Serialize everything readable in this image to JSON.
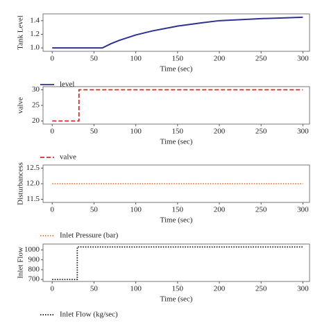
{
  "chart_data": [
    {
      "type": "line",
      "ylabel": "Tank Level",
      "xlabel": "Time (sec)",
      "x": [
        0,
        60,
        70,
        80,
        100,
        120,
        150,
        180,
        200,
        250,
        300
      ],
      "series": [
        {
          "name": "level",
          "color": "#2e3192",
          "dash": "solid",
          "values": [
            1.0,
            1.0,
            1.06,
            1.11,
            1.19,
            1.25,
            1.32,
            1.37,
            1.4,
            1.43,
            1.45
          ]
        }
      ],
      "xlim": [
        -11,
        308
      ],
      "xticks": [
        0,
        50,
        100,
        150,
        200,
        250,
        300
      ],
      "ylim": [
        0.95,
        1.5
      ],
      "yticks": [
        {
          "value": 1,
          "label": "1.0"
        },
        1.2,
        1.4
      ]
    },
    {
      "type": "line",
      "ylabel": "valve",
      "xlabel": "Time (sec)",
      "x": [
        0,
        32,
        32,
        300
      ],
      "series": [
        {
          "name": "valve",
          "color": "#d62728",
          "dash": "dashed",
          "values": [
            20,
            20,
            30,
            30
          ]
        }
      ],
      "xlim": [
        -11,
        308
      ],
      "xticks": [
        0,
        50,
        100,
        150,
        200,
        250,
        300
      ],
      "ylim": [
        19,
        31
      ],
      "yticks": [
        20,
        25,
        30
      ]
    },
    {
      "type": "line",
      "ylabel": "Disturbancess",
      "xlabel": "Time (sec)",
      "x": [
        0,
        300
      ],
      "series": [
        {
          "name": "Inlet Pressure (bar)",
          "color": "#e8743b",
          "dash": "dotted",
          "values": [
            12,
            12
          ]
        }
      ],
      "xlim": [
        -11,
        308
      ],
      "xticks": [
        0,
        50,
        100,
        150,
        200,
        250,
        300
      ],
      "ylim": [
        11.4,
        12.6
      ],
      "yticks": [
        11.5,
        {
          "value": 12,
          "label": "12.0"
        },
        12.5
      ]
    },
    {
      "type": "line",
      "ylabel": "Inlet Flow",
      "xlabel": "Time (sec)",
      "x": [
        0,
        30,
        30,
        300
      ],
      "series": [
        {
          "name": "Inlet Flow (kg/sec)",
          "color": "#111111",
          "dash": "dotted",
          "values": [
            700,
            700,
            1030,
            1030
          ]
        }
      ],
      "xlim": [
        -11,
        308
      ],
      "xticks": [
        0,
        50,
        100,
        150,
        200,
        250,
        300
      ],
      "ylim": [
        680,
        1060
      ],
      "yticks": [
        700,
        800,
        900,
        1000
      ]
    }
  ]
}
